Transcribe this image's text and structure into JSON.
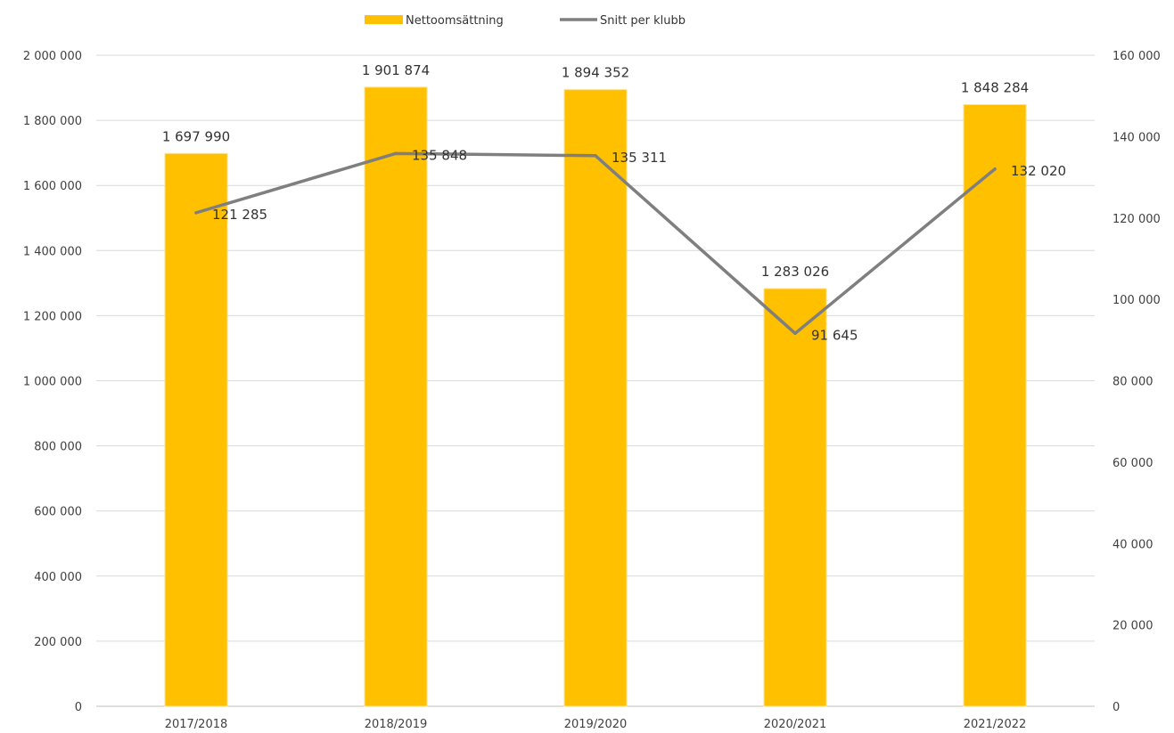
{
  "chart_data": {
    "type": "bar",
    "categories": [
      "2017/2018",
      "2018/2019",
      "2019/2020",
      "2020/2021",
      "2021/2022"
    ],
    "series": [
      {
        "name": "Nettoomsättning",
        "type": "bar",
        "axis": "left",
        "values": [
          1697990,
          1901874,
          1894352,
          1283026,
          1848284
        ],
        "labels": [
          "1 697 990",
          "1 901 874",
          "1 894 352",
          "1 283 026",
          "1 848 284"
        ],
        "color": "#FFC000"
      },
      {
        "name": "Snitt per klubb",
        "type": "line",
        "axis": "right",
        "values": [
          121285,
          135848,
          135311,
          91645,
          132020
        ],
        "labels": [
          "121 285",
          "135 848",
          "135 311",
          "91 645",
          "132 020"
        ],
        "color": "#7F7F7F"
      }
    ],
    "y_left": {
      "ylim": [
        0,
        2000000
      ],
      "ticks": [
        0,
        200000,
        400000,
        600000,
        800000,
        1000000,
        1200000,
        1400000,
        1600000,
        1800000,
        2000000
      ],
      "tick_labels": [
        "0",
        "200 000",
        "400 000",
        "600 000",
        "800 000",
        "1 000 000",
        "1 200 000",
        "1 400 000",
        "1 600 000",
        "1 800 000",
        "2 000 000"
      ]
    },
    "y_right": {
      "ylim": [
        0,
        160000
      ],
      "ticks": [
        0,
        20000,
        40000,
        60000,
        80000,
        100000,
        120000,
        140000,
        160000
      ],
      "tick_labels": [
        "0",
        "20 000",
        "40 000",
        "60 000",
        "80 000",
        "100 000",
        "120 000",
        "140 000",
        "160 000"
      ]
    },
    "grid": true,
    "legend": "top-center",
    "gridline_color": "#D9D9D9"
  }
}
